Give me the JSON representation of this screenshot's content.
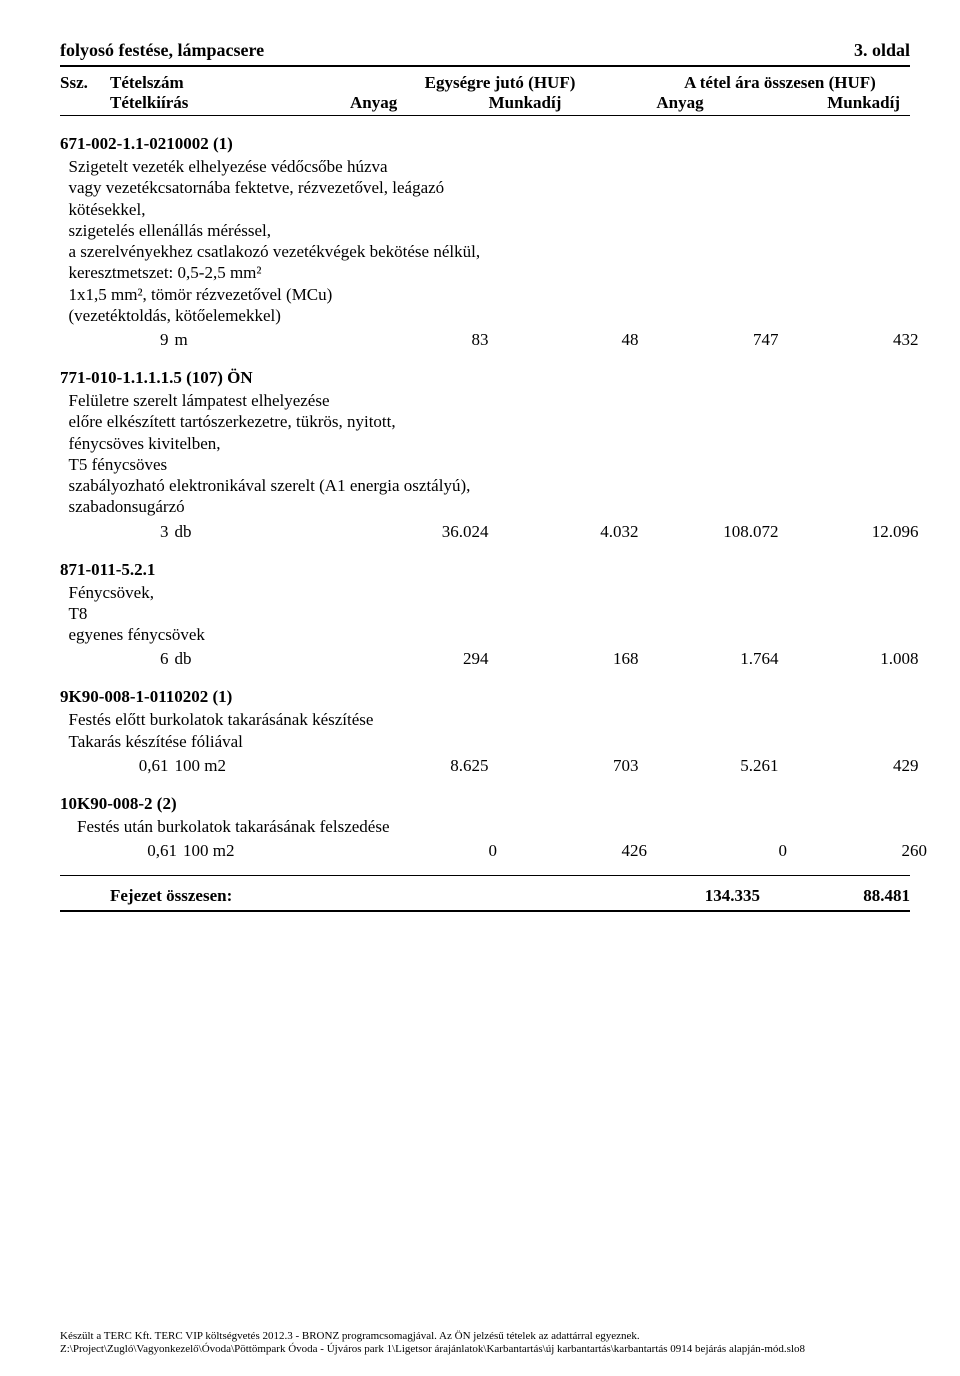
{
  "pageTitleLeft": "folyosó festése, lámpacsere",
  "pageTitleRight": "3. oldal",
  "header": {
    "ssz": "Ssz.",
    "tetelszam": "Tételszám",
    "tetelkiiras": "Tételkiírás",
    "egysegre": "Egységre jutó (HUF)",
    "osszesen": "A tétel ára összesen (HUF)",
    "anyag": "Anyag",
    "munkadij": "Munkadíj"
  },
  "items": [
    {
      "num": "6",
      "code": "71-002-1.1-0210002 (1)",
      "desc": [
        "Szigetelt vezeték elhelyezése védőcsőbe húzva",
        "vagy vezetékcsatornába fektetve, rézvezetővel, leágazó",
        "kötésekkel,",
        "szigetelés ellenállás méréssel,",
        "a szerelvényekhez csatlakozó vezetékvégek bekötése nélkül,",
        "keresztmetszet: 0,5-2,5 mm²",
        "1x1,5 mm², tömör rézvezetővel (MCu)",
        "(vezetéktoldás, kötőelemekkel)"
      ],
      "qty": "9",
      "unit": "m",
      "ua": "83",
      "um": "48",
      "ta": "747",
      "tm": "432"
    },
    {
      "num": "7",
      "code": "71-010-1.1.1.1.5 (107) ÖN",
      "desc": [
        "Felületre szerelt lámpatest elhelyezése",
        "előre elkészített tartószerkezetre, tükrös, nyitott,",
        "fénycsöves kivitelben,",
        "T5 fénycsöves",
        "szabályozható elektronikával szerelt (A1 energia osztályú),",
        "szabadonsugárzó"
      ],
      "qty": "3",
      "unit": "db",
      "ua": "36.024",
      "um": "4.032",
      "ta": "108.072",
      "tm": "12.096"
    },
    {
      "num": "8",
      "code": "71-011-5.2.1",
      "desc": [
        "Fénycsövek,",
        "T8",
        "egyenes fénycsövek"
      ],
      "qty": "6",
      "unit": "db",
      "ua": "294",
      "um": "168",
      "ta": "1.764",
      "tm": "1.008"
    },
    {
      "num": "9",
      "code": "K90-008-1-0110202 (1)",
      "desc": [
        "Festés előtt burkolatok takarásának készítése",
        "Takarás készítése fóliával"
      ],
      "qty": "0,61",
      "unit": "100 m2",
      "ua": "8.625",
      "um": "703",
      "ta": "5.261",
      "tm": "429"
    },
    {
      "num": "10",
      "code": "K90-008-2 (2)",
      "desc": [
        "Festés után burkolatok takarásának felszedése"
      ],
      "qty": "0,61",
      "unit": "100 m2",
      "ua": "0",
      "um": "426",
      "ta": "0",
      "tm": "260"
    }
  ],
  "summary": {
    "label": "Fejezet összesen:",
    "anyag": "134.335",
    "munkadij": "88.481"
  },
  "footer": {
    "line1": "Készült a TERC Kft. TERC VIP költségvetés 2012.3 - BRONZ programcsomagjával. Az ÖN jelzésű tételek az adattárral egyeznek.",
    "line2": "Z:\\Project\\Zugló\\Vagyonkezelő\\Óvoda\\Pöttömpark Óvoda - Újváros park 1\\Ligetsor árajánlatok\\Karbantartás\\új karbantartás\\karbantartás 0914 bejárás alapján-mód.slo8"
  }
}
